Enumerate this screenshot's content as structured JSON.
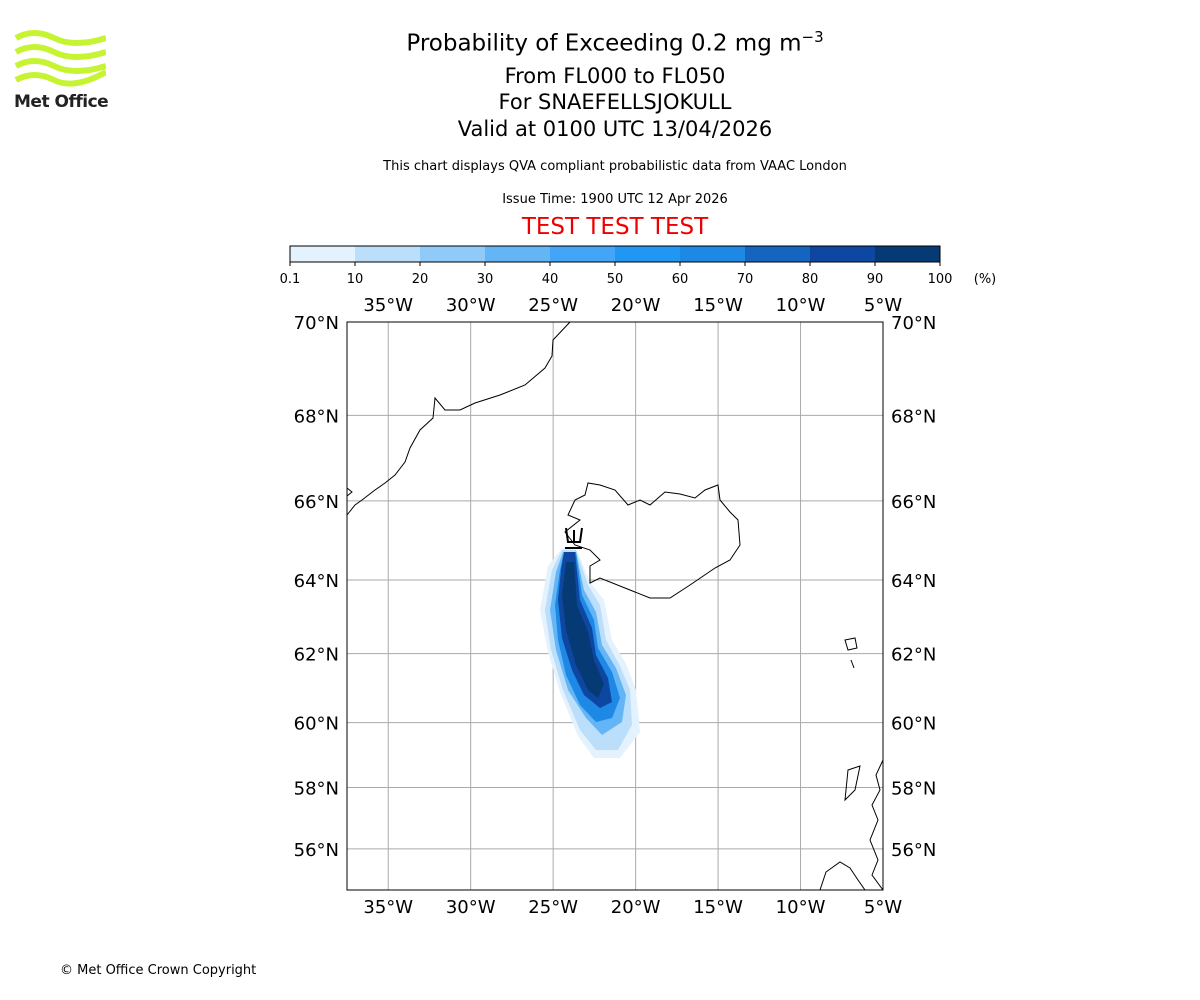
{
  "header": {
    "title": "Probability of Exceeding 0.2 mg m",
    "title_sup": "−3",
    "levels": "From FL000 to FL050",
    "location": "For SNAEFELLSJOKULL",
    "valid": "Valid at 0100 UTC 13/04/2026",
    "description": "This chart displays QVA compliant probabilistic data from VAAC London",
    "issue": "Issue Time: 1900 UTC 12 Apr 2026",
    "test_banner": "TEST TEST TEST"
  },
  "logo": {
    "text": "Met Office"
  },
  "footer": {
    "copyright": "© Met Office Crown Copyright"
  },
  "chart_data": {
    "type": "heatmap",
    "colorbar": {
      "ticks": [
        "0.1",
        "10",
        "20",
        "30",
        "40",
        "50",
        "60",
        "70",
        "80",
        "90",
        "100"
      ],
      "unit": "(%)",
      "colors": [
        "#e3f2fd",
        "#bbdefb",
        "#90caf9",
        "#64b5f6",
        "#42a5f5",
        "#2196f3",
        "#1e88e5",
        "#1565c0",
        "#0d47a1",
        "#063a75"
      ]
    },
    "x_ticks": [
      "35°W",
      "30°W",
      "25°W",
      "20°W",
      "15°W",
      "10°W",
      "5°W"
    ],
    "y_ticks": [
      "70°N",
      "68°N",
      "66°N",
      "64°N",
      "62°N",
      "60°N",
      "58°N",
      "56°N"
    ],
    "xlim": [
      -37.5,
      -5
    ],
    "ylim": [
      54.6,
      70
    ],
    "plume": {
      "source": "Snaefellsjokull",
      "approx_extent_lon": [
        -25.5,
        -20
      ],
      "approx_extent_lat": [
        58.8,
        64.8
      ],
      "max_probability_percent": 100
    }
  }
}
